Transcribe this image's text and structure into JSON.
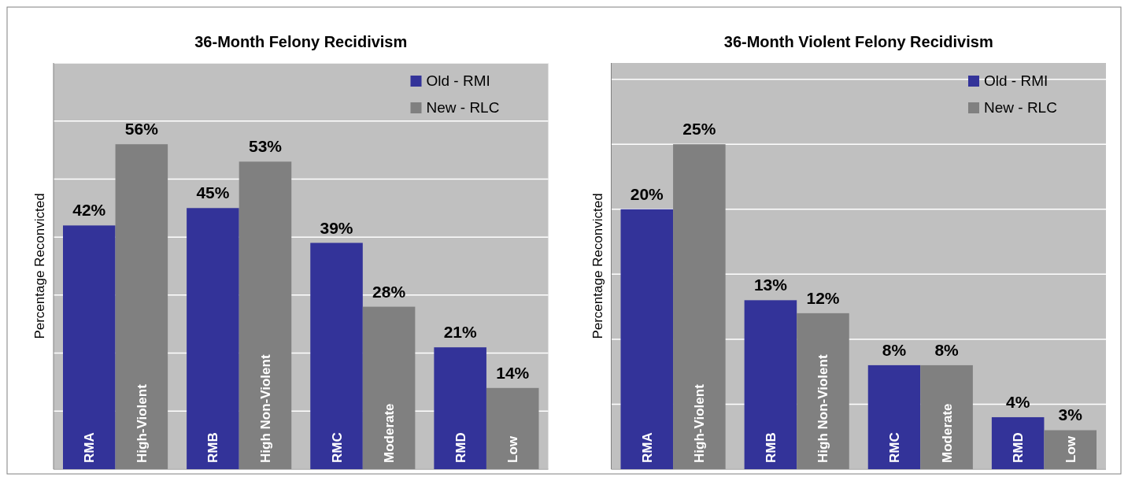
{
  "chart_data": [
    {
      "type": "bar",
      "title": "36-Month Felony Recidivism",
      "ylabel": "Percentage Reconvicted",
      "categories": [
        null,
        null,
        null,
        null
      ],
      "series": [
        {
          "name": "Old - RMI",
          "color": "#333399",
          "values": [
            42,
            45,
            39,
            21
          ],
          "value_labels": [
            "42%",
            "45%",
            "39%",
            "21%"
          ]
        },
        {
          "name": "New - RLC",
          "color": "#808080",
          "values": [
            56,
            53,
            28,
            14
          ],
          "value_labels": [
            "56%",
            "53%",
            "28%",
            "14%"
          ]
        }
      ],
      "annotations": [
        "RMA",
        "High-Violent",
        "RMB",
        "High Non-Violent",
        "RMC",
        "Moderate",
        "RMD",
        "Low"
      ],
      "grid": "y",
      "legend": "top right",
      "tick_labels": false
    },
    {
      "type": "bar",
      "title": "36-Month Violent Felony Recidivism",
      "ylabel": "Percentage Reconvicted",
      "categories": [
        null,
        null,
        null,
        null
      ],
      "series": [
        {
          "name": "Old - RMI",
          "color": "#333399",
          "values": [
            20,
            13,
            8,
            4
          ],
          "value_labels": [
            "20%",
            "13%",
            "8%",
            "4%"
          ]
        },
        {
          "name": "New - RLC",
          "color": "#808080",
          "values": [
            25,
            12,
            8,
            3
          ],
          "value_labels": [
            "25%",
            "12%",
            "8%",
            "3%"
          ]
        }
      ],
      "annotations": [
        "RMA",
        "High-Violent",
        "RMB",
        "High Non-Violent",
        "RMC",
        "Moderate",
        "RMD",
        "Low"
      ],
      "grid": "y",
      "legend": "top right",
      "tick_labels": false
    }
  ]
}
